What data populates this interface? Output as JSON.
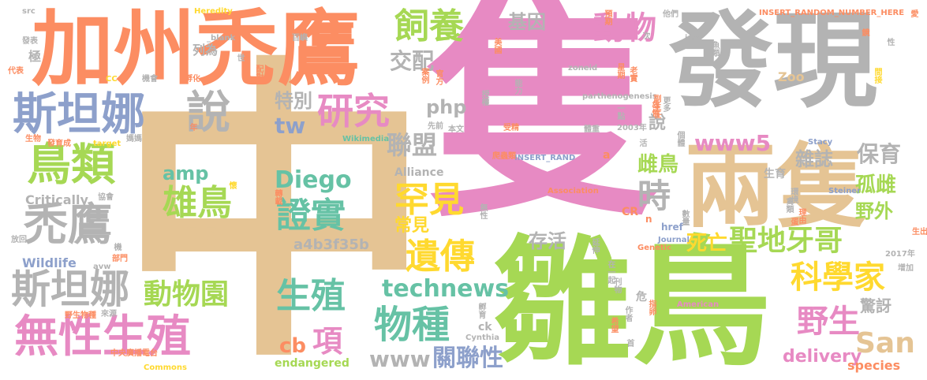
{
  "palette": {
    "pink": "#e78ac3",
    "green": "#a6d854",
    "tan": "#e5c494",
    "orange": "#fc8d62",
    "gray": "#b3b3b3",
    "blue": "#8da0cb",
    "yellow": "#ffd92f",
    "teal": "#66c2a5"
  },
  "words": [
    "隻",
    "中",
    "雛鳥",
    "發現",
    "兩隻",
    "加州禿鷹",
    "斯坦娜",
    "說",
    "鳥類",
    "禿鷹",
    "斯坦娜",
    "無性生殖",
    "研究",
    "飼養",
    "動物",
    "雄鳥",
    "證實",
    "罕見",
    "遺傳",
    "生殖",
    "物種",
    "科學家",
    "聖地牙哥",
    "野生",
    "San",
    "www5",
    "動物園",
    "Diego",
    "時",
    "項",
    "technews",
    "www",
    "關聯性",
    "聯盟",
    "保育",
    "雜誌",
    "孤雌",
    "雌鳥",
    "野外",
    "死亡",
    "繁殖",
    "交配",
    "基因",
    "特別",
    "tw",
    "php",
    "cb",
    "常見",
    "存活",
    "amp",
    "a4b3f35b",
    "delivery",
    "驚訝",
    "species",
    "endangered",
    "Alliance",
    "Critically",
    "Wildlife",
    "Zoo",
    "說",
    "生育",
    "列為",
    "極",
    "ck",
    "Cynthia",
    "American",
    "Genetic",
    "Journal",
    "href",
    "CR",
    "危",
    "n",
    "a",
    "INSERT_RANDOM_NUMBER_HERE",
    "INSERT_RAND",
    "zoneid",
    "parthenogenesis",
    "Association",
    "Steiner",
    "Stacy",
    "2003年",
    "Heredity",
    "_blank",
    "src",
    "發表",
    "代表",
    "CC",
    "機會",
    "孵化",
    "生物",
    "發育成",
    "target",
    "媽媽",
    "Wikimedia",
    "先前",
    "本文",
    "受精",
    "體重",
    "爬蟲類",
    "2017年",
    "增加",
    "生出",
    "放回",
    "部門",
    "avw",
    "協會",
    "野生物種",
    "來源",
    "Commons",
    "中央廣播電台",
    "預期",
    "星期",
    "老實",
    "雄性",
    "更多",
    "一點",
    "理由",
    "禽類",
    "蛋",
    "延伸",
    "在一起",
    "刊物",
    "作者",
    "希望",
    "孵育",
    "首",
    "指卵",
    "數量",
    "無性",
    "轉載",
    "愛",
    "個體",
    "環境",
    "img",
    "官方",
    "案例",
    "授權",
    "能力",
    "百嶼",
    "配對",
    "世",
    "美國",
    "次",
    "他們",
    "魚類",
    "鏡",
    "性",
    "間接",
    "副主任",
    "活",
    "機",
    "懷",
    "年"
  ]
}
